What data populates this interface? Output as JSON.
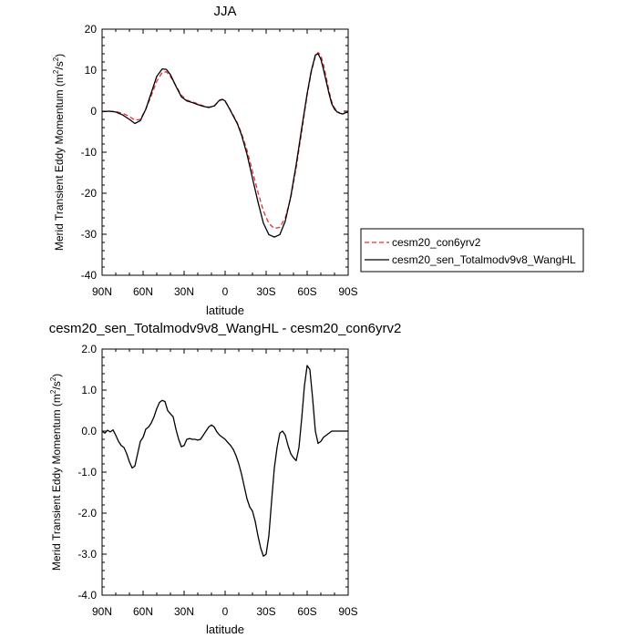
{
  "chart_data": [
    {
      "type": "line",
      "title": "JJA",
      "xlabel": "latitude",
      "ylabel": "Merid Transient Eddy Momentum (m",
      "ylabel_unit_sup": "2",
      "ylabel_mid": "/s",
      "ylabel_unit_sup2": "2",
      "ylabel_end": ")",
      "xlim": [
        90,
        -90
      ],
      "ylim": [
        -40,
        20
      ],
      "x_ticks": [
        90,
        60,
        30,
        0,
        -30,
        -60,
        -90
      ],
      "x_tick_labels": [
        "90N",
        "60N",
        "30N",
        "0",
        "30S",
        "60S",
        "90S"
      ],
      "y_ticks": [
        20,
        10,
        0,
        -10,
        -20,
        -30,
        -40
      ],
      "y_tick_labels": [
        "20",
        "10",
        "0",
        "-10",
        "-20",
        "-30",
        "-40"
      ],
      "legend_position": "outside-right",
      "series": [
        {
          "name": "cesm20_con6yrv2",
          "color": "#e03030",
          "style": "dashed",
          "x": [
            90,
            85,
            80,
            75,
            70,
            66,
            62,
            58,
            54,
            50,
            46,
            43,
            40,
            36,
            32,
            28,
            24,
            20,
            16,
            12,
            8,
            4,
            2,
            0,
            -3,
            -6,
            -9,
            -12,
            -16,
            -20,
            -24,
            -28,
            -32,
            -36,
            -40,
            -44,
            -48,
            -52,
            -56,
            -60,
            -63,
            -66,
            -68,
            -70,
            -72,
            -74,
            -76,
            -78,
            -80,
            -82,
            -84,
            -86,
            -88,
            -90
          ],
          "y": [
            -0.1,
            0.0,
            -0.1,
            -0.5,
            -1.3,
            -2.2,
            -2.0,
            0.5,
            3.8,
            7.3,
            9.5,
            9.6,
            8.5,
            6.2,
            3.9,
            2.7,
            2.3,
            1.8,
            1.3,
            1.0,
            1.2,
            2.6,
            2.8,
            2.4,
            0.8,
            -1.0,
            -2.9,
            -5.4,
            -9.5,
            -14.6,
            -19.7,
            -24.3,
            -27.4,
            -28.6,
            -28.3,
            -26.0,
            -21.2,
            -13.7,
            -5.0,
            3.9,
            9.5,
            13.4,
            14.3,
            13.6,
            11.3,
            8.2,
            4.9,
            2.3,
            0.8,
            0.0,
            -0.5,
            -0.7,
            -0.3,
            -0.1
          ]
        },
        {
          "name": "cesm20_sen_Totalmodv9v8_WangHL",
          "color": "#000000",
          "style": "solid",
          "x": [
            90,
            85,
            80,
            75,
            70,
            66,
            62,
            58,
            54,
            50,
            46,
            43,
            40,
            36,
            32,
            28,
            24,
            20,
            16,
            12,
            8,
            4,
            2,
            0,
            -3,
            -6,
            -9,
            -12,
            -16,
            -20,
            -24,
            -28,
            -32,
            -36,
            -40,
            -44,
            -48,
            -52,
            -56,
            -60,
            -63,
            -66,
            -68,
            -70,
            -72,
            -74,
            -76,
            -78,
            -80,
            -82,
            -84,
            -86,
            -88,
            -90
          ],
          "y": [
            -0.1,
            0.0,
            -0.2,
            -0.9,
            -2.0,
            -3.0,
            -2.3,
            0.5,
            4.5,
            8.5,
            10.3,
            10.2,
            8.9,
            6.1,
            3.5,
            2.5,
            2.1,
            1.6,
            1.2,
            0.9,
            1.3,
            2.7,
            2.9,
            2.5,
            0.7,
            -1.2,
            -3.1,
            -5.8,
            -10.5,
            -16.3,
            -22.1,
            -27.3,
            -30.1,
            -30.7,
            -30.1,
            -26.8,
            -20.8,
            -13.0,
            -4.2,
            4.3,
            9.8,
            13.7,
            14.0,
            12.7,
            10.1,
            7.2,
            4.3,
            1.8,
            0.5,
            -0.2,
            -0.5,
            -0.7,
            -0.4,
            -0.2
          ]
        }
      ]
    },
    {
      "type": "line",
      "title": "cesm20_sen_Totalmodv9v8_WangHL - cesm20_con6yrv2",
      "xlabel": "latitude",
      "ylabel": "Merid Transient Eddy Momentum (m",
      "ylabel_unit_sup": "2",
      "ylabel_mid": "/s",
      "ylabel_unit_sup2": "2",
      "ylabel_end": ")",
      "xlim": [
        90,
        -90
      ],
      "ylim": [
        -4,
        2
      ],
      "x_ticks": [
        90,
        60,
        30,
        0,
        -30,
        -60,
        -90
      ],
      "x_tick_labels": [
        "90N",
        "60N",
        "30N",
        "0",
        "30S",
        "60S",
        "90S"
      ],
      "y_ticks": [
        2,
        1,
        0,
        -1,
        -2,
        -3,
        -4
      ],
      "y_tick_labels": [
        "2.0",
        "1.0",
        "0.0",
        "-1.0",
        "-2.0",
        "-3.0",
        "-4.0"
      ],
      "series": [
        {
          "color": "#000000",
          "style": "solid",
          "x": [
            90,
            88,
            86,
            84,
            82,
            80,
            78,
            76,
            74,
            72,
            70,
            68,
            66,
            64,
            62,
            60,
            58,
            56,
            54,
            52,
            50,
            48,
            46,
            44,
            42,
            40,
            38,
            36,
            34,
            32,
            30,
            28,
            26,
            24,
            22,
            20,
            18,
            16,
            14,
            12,
            10,
            8,
            6,
            4,
            2,
            0,
            -2,
            -4,
            -6,
            -8,
            -10,
            -12,
            -14,
            -16,
            -18,
            -20,
            -22,
            -24,
            -26,
            -28,
            -30,
            -32,
            -34,
            -36,
            -38,
            -40,
            -42,
            -44,
            -46,
            -48,
            -50,
            -52,
            -54,
            -56,
            -58,
            -60,
            -62,
            -64,
            -66,
            -68,
            -70,
            -72,
            -74,
            -76,
            -78,
            -80,
            -82,
            -84,
            -86,
            -88,
            -90
          ],
          "y": [
            0.0,
            -0.05,
            0.02,
            -0.02,
            0.03,
            -0.1,
            -0.25,
            -0.35,
            -0.4,
            -0.55,
            -0.75,
            -0.9,
            -0.85,
            -0.55,
            -0.25,
            -0.15,
            0.05,
            0.1,
            0.2,
            0.35,
            0.55,
            0.7,
            0.75,
            0.72,
            0.5,
            0.42,
            0.35,
            0.05,
            -0.2,
            -0.38,
            -0.35,
            -0.2,
            -0.18,
            -0.2,
            -0.2,
            -0.22,
            -0.2,
            -0.1,
            0.0,
            0.1,
            0.15,
            0.1,
            -0.02,
            -0.1,
            -0.15,
            -0.2,
            -0.28,
            -0.35,
            -0.45,
            -0.6,
            -0.8,
            -1.05,
            -1.35,
            -1.65,
            -1.85,
            -1.95,
            -2.2,
            -2.55,
            -2.85,
            -3.05,
            -3.0,
            -2.55,
            -1.7,
            -0.9,
            -0.4,
            -0.05,
            0.0,
            -0.1,
            -0.35,
            -0.55,
            -0.65,
            -0.72,
            -0.4,
            0.3,
            1.1,
            1.6,
            1.5,
            0.8,
            0.0,
            -0.3,
            -0.25,
            -0.15,
            -0.1,
            -0.05,
            0.0,
            0.0,
            0.0,
            0.0,
            0.0,
            0.0,
            0.0
          ]
        }
      ]
    }
  ]
}
